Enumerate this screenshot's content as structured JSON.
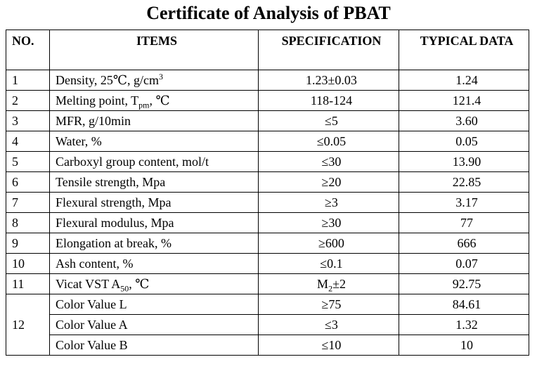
{
  "title": "Certificate of Analysis of PBAT",
  "table": {
    "headers": {
      "no": "NO.",
      "items": "ITEMS",
      "specification": "SPECIFICATION",
      "typical": "TYPICAL DATA"
    },
    "rows": [
      {
        "no": "1",
        "item": "Density, 25℃, g/cm",
        "item_sup": "3",
        "item_after": "",
        "spec": "1.23±0.03",
        "typical": "1.24"
      },
      {
        "no": "2",
        "item": "Melting point, T",
        "item_sub": "pm",
        "item_after": ", ℃",
        "spec": "118-124",
        "typical": "121.4"
      },
      {
        "no": "3",
        "item": "MFR, g/10min",
        "spec": "≤5",
        "typical": "3.60"
      },
      {
        "no": "4",
        "item": "Water, %",
        "spec": "≤0.05",
        "typical": "0.05"
      },
      {
        "no": "5",
        "item": "Carboxyl group content, mol/t",
        "spec": "≤30",
        "typical": "13.90"
      },
      {
        "no": "6",
        "item": "Tensile strength, Mpa",
        "spec": "≥20",
        "typical": "22.85"
      },
      {
        "no": "7",
        "item": "Flexural strength, Mpa",
        "spec": "≥3",
        "typical": "3.17"
      },
      {
        "no": "8",
        "item": "Flexural modulus, Mpa",
        "spec": "≥30",
        "typical": "77"
      },
      {
        "no": "9",
        "item": "Elongation at break, %",
        "spec": "≥600",
        "typical": "666"
      },
      {
        "no": "10",
        "item": "Ash content, %",
        "spec": "≤0.1",
        "typical": "0.07"
      },
      {
        "no": "11",
        "item": "Vicat VST A",
        "item_sub": "50",
        "item_after": ", ℃",
        "spec": "M",
        "spec_sub": "2",
        "spec_after": "±2",
        "typical": "92.75"
      },
      {
        "no": "12",
        "item": "Color Value L",
        "spec": "≥75",
        "typical": "84.61"
      },
      {
        "item": "Color Value A",
        "spec": "≤3",
        "typical": "1.32"
      },
      {
        "item": "Color Value B",
        "spec": "≤10",
        "typical": "10"
      }
    ]
  }
}
